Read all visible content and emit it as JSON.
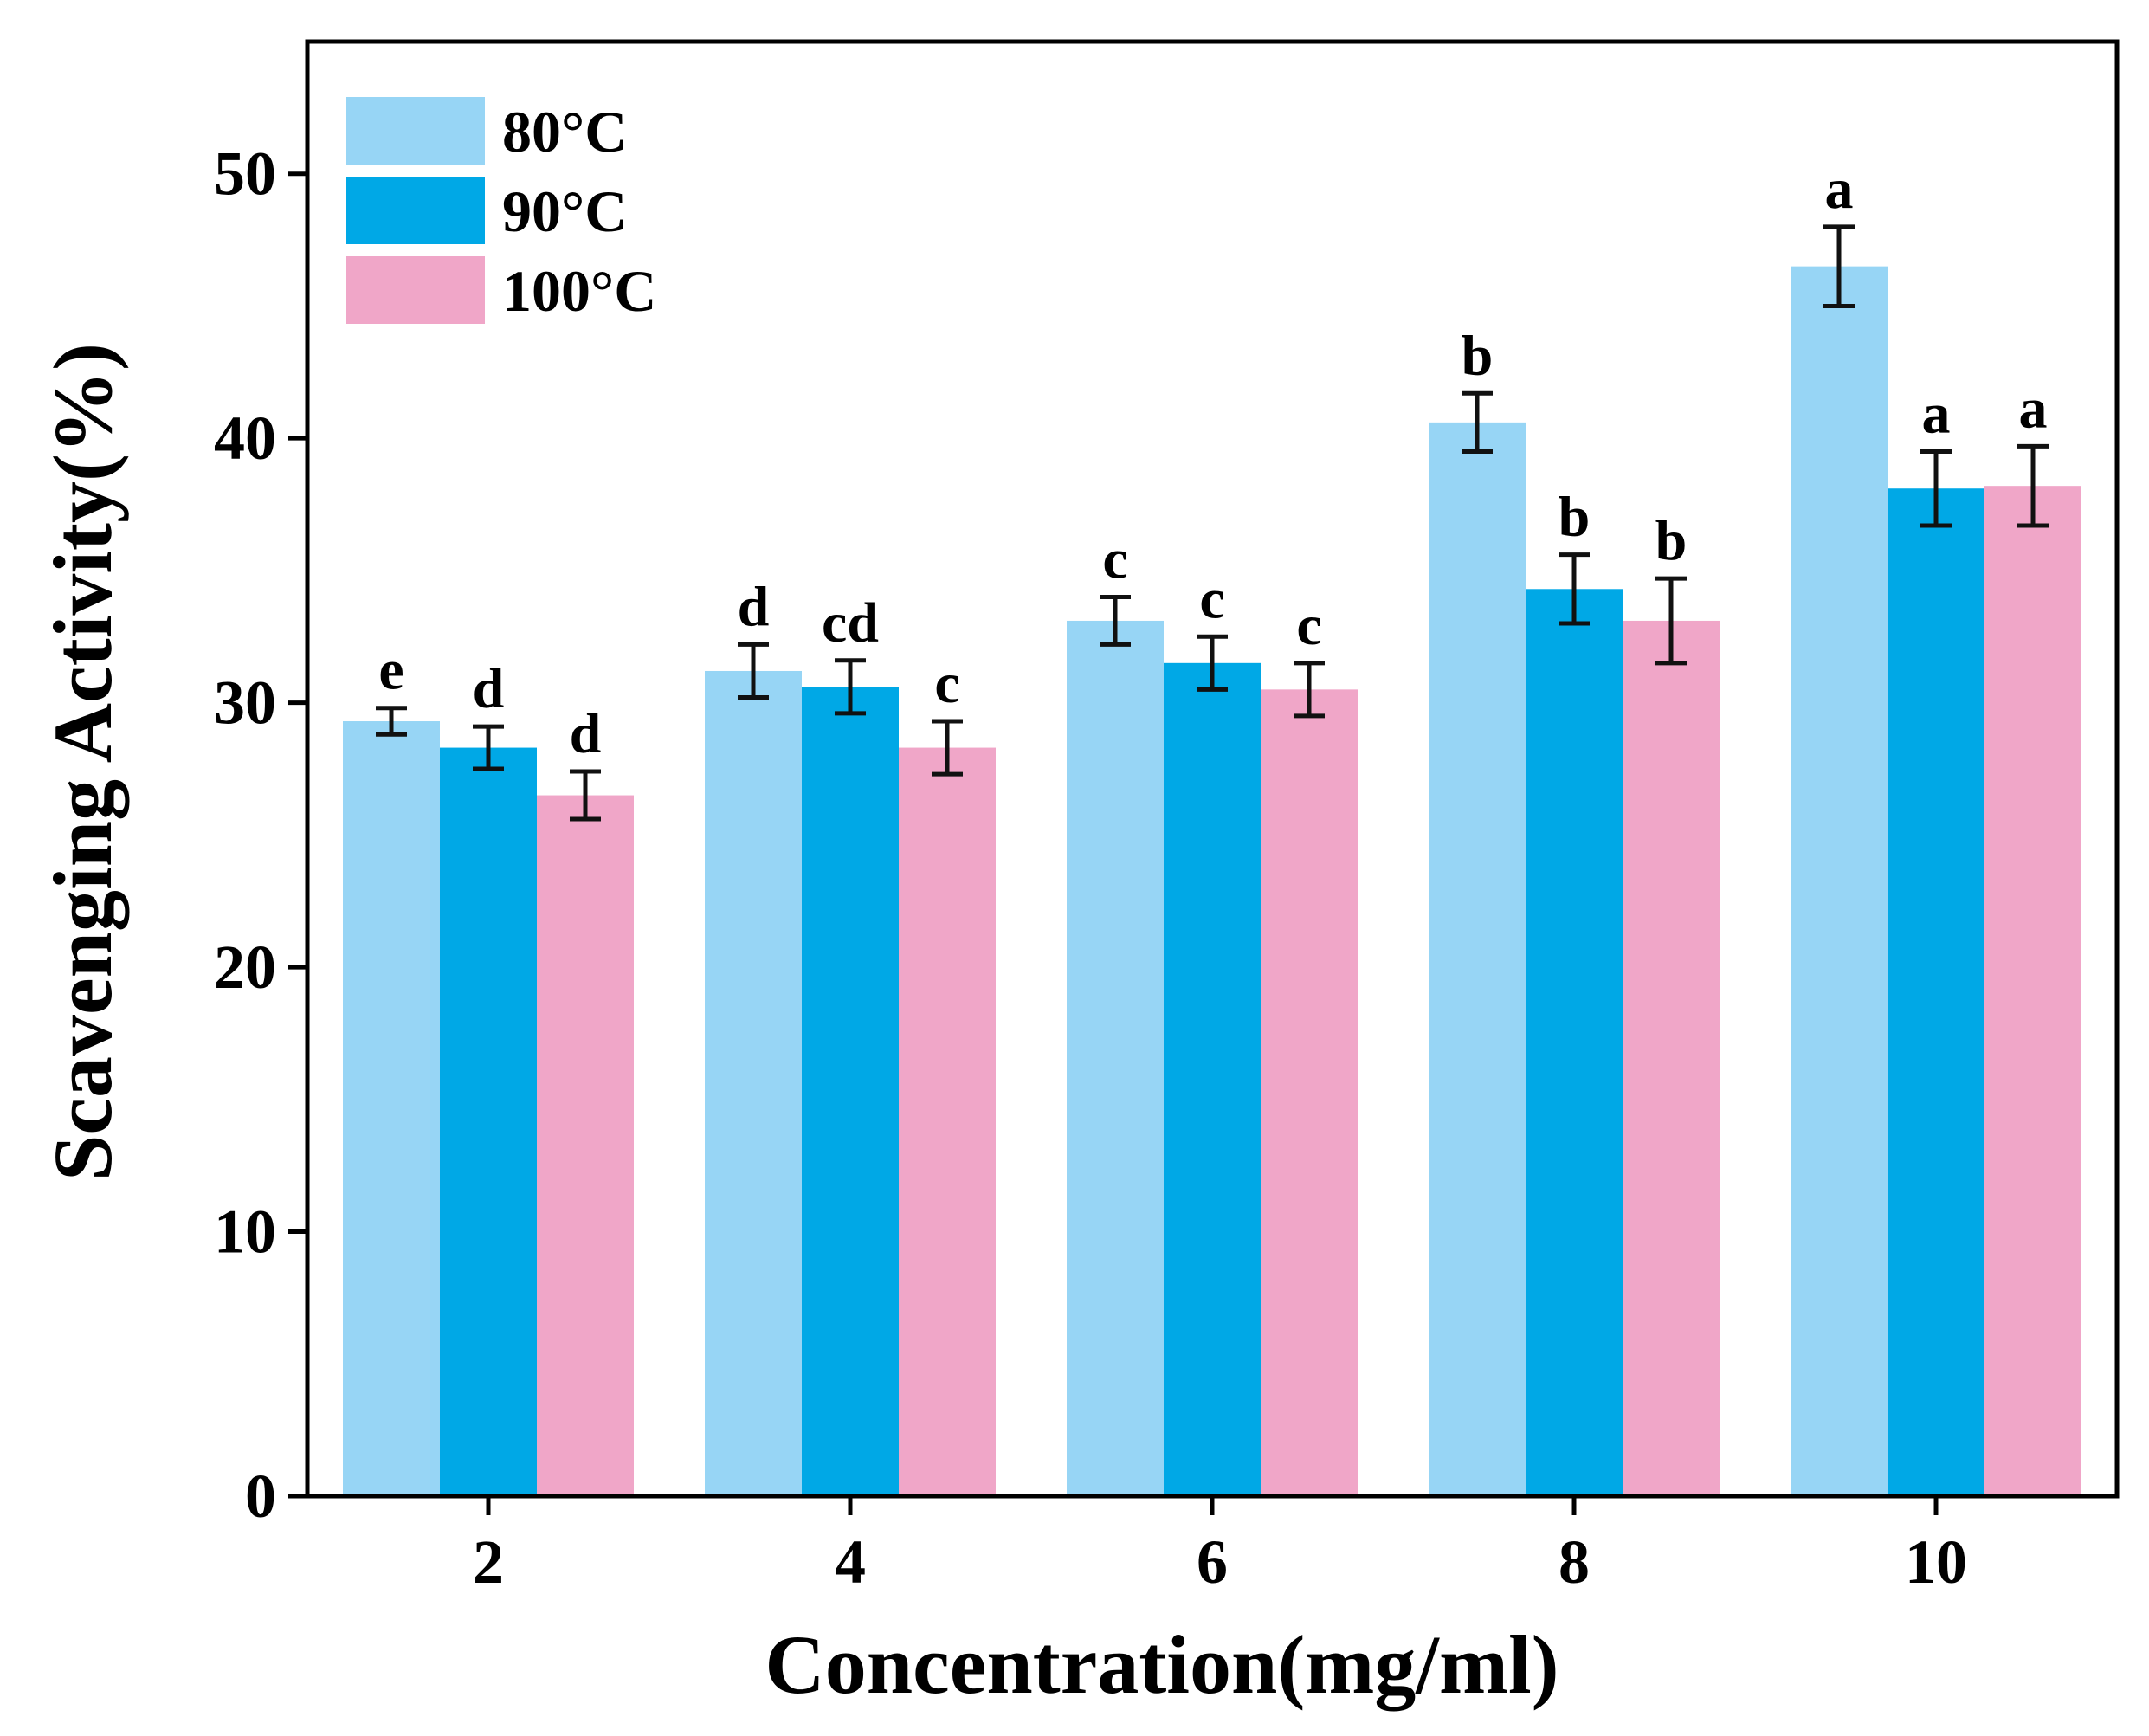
{
  "chart_data": {
    "type": "bar",
    "xlabel": "Concentration(mg/ml)",
    "ylabel": "Scavenging Activity(%)",
    "ylim": [
      0,
      55
    ],
    "yticks": [
      0,
      10,
      20,
      30,
      40,
      50
    ],
    "categories": [
      "2",
      "4",
      "6",
      "8",
      "10"
    ],
    "legend_position": "top-left",
    "grid": false,
    "series": [
      {
        "name": "80°C",
        "color": "#97d5f5",
        "values": [
          29.3,
          31.2,
          33.1,
          40.6,
          46.5
        ],
        "errors": [
          0.5,
          1.0,
          0.9,
          1.1,
          1.5
        ],
        "letters": [
          "e",
          "d",
          "c",
          "b",
          "a"
        ]
      },
      {
        "name": "90°C",
        "color": "#00a8e6",
        "values": [
          28.3,
          30.6,
          31.5,
          34.3,
          38.1
        ],
        "errors": [
          0.8,
          1.0,
          1.0,
          1.3,
          1.4
        ],
        "letters": [
          "d",
          "cd",
          "c",
          "b",
          "a"
        ]
      },
      {
        "name": "100°C",
        "color": "#f0a6c8",
        "values": [
          26.5,
          28.3,
          30.5,
          33.1,
          38.2
        ],
        "errors": [
          0.9,
          1.0,
          1.0,
          1.6,
          1.5
        ],
        "letters": [
          "d",
          "c",
          "c",
          "b",
          "a"
        ]
      }
    ]
  }
}
